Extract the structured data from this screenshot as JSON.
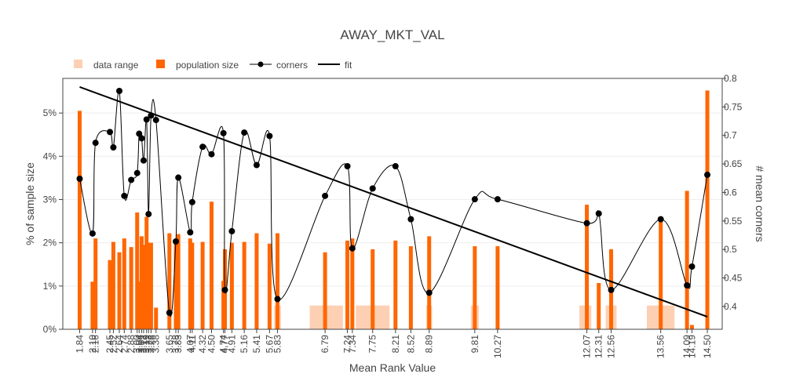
{
  "chart_data": {
    "type": "bar",
    "title": "AWAY_MKT_VAL",
    "xlabel": "Mean Rank Value",
    "ylabel": "% of sample size",
    "y2label": "# mean corners",
    "xlim": [
      1.5,
      14.8
    ],
    "ylim": [
      0,
      5.8
    ],
    "y2lim": [
      0.36,
      0.8
    ],
    "yticks": [
      0,
      1,
      2,
      3,
      4,
      5
    ],
    "ytick_labels": [
      "0%",
      "1%",
      "2%",
      "3%",
      "4%",
      "5%"
    ],
    "y2ticks": [
      0.4,
      0.45,
      0.5,
      0.55,
      0.6,
      0.65,
      0.7,
      0.75,
      0.8
    ],
    "grid": true,
    "legend_position": "top-left",
    "colors": {
      "data_range": "#fdd0b4",
      "population": "#ff6600",
      "line": "#000000"
    },
    "legend": [
      {
        "label": "data range",
        "kind": "range"
      },
      {
        "label": "population size",
        "kind": "bar"
      },
      {
        "label": "corners",
        "kind": "line-marker"
      },
      {
        "label": "fit",
        "kind": "line"
      }
    ],
    "x_tick_labels": [
      "1.84",
      "2.10",
      "2.16",
      "2.45",
      "2.52",
      "2.64",
      "2.74",
      "2.88",
      "3.00",
      "3.04",
      "3.09",
      "3.13",
      "3.19",
      "3.23",
      "3.28",
      "3.38",
      "3.65",
      "3.78",
      "3.83",
      "4.07",
      "4.11",
      "4.32",
      "4.50",
      "4.74",
      "4.77",
      "4.91",
      "5.16",
      "5.41",
      "5.67",
      "5.83",
      "6.79",
      "7.24",
      "7.34",
      "7.75",
      "8.21",
      "8.52",
      "8.89",
      "9.81",
      "10.27",
      "12.07",
      "12.31",
      "12.56",
      "13.56",
      "14.09",
      "14.19",
      "14.50"
    ],
    "x_values": [
      1.84,
      2.1,
      2.16,
      2.45,
      2.52,
      2.64,
      2.74,
      2.88,
      3.0,
      3.04,
      3.09,
      3.13,
      3.19,
      3.23,
      3.28,
      3.38,
      3.65,
      3.78,
      3.83,
      4.07,
      4.11,
      4.32,
      4.5,
      4.74,
      4.77,
      4.91,
      5.16,
      5.41,
      5.67,
      5.83,
      6.79,
      7.24,
      7.34,
      7.75,
      8.21,
      8.52,
      8.89,
      9.81,
      10.27,
      12.07,
      12.31,
      12.56,
      13.56,
      14.09,
      14.19,
      14.5
    ],
    "population_size": [
      5.05,
      1.1,
      2.1,
      1.6,
      2.02,
      1.78,
      2.1,
      1.9,
      2.7,
      1.1,
      2.15,
      1.95,
      2.6,
      2.0,
      2.0,
      0.5,
      2.22,
      2.0,
      2.2,
      2.1,
      2.0,
      2.02,
      2.95,
      1.12,
      1.85,
      2.0,
      2.02,
      2.22,
      1.98,
      2.22,
      1.78,
      2.05,
      2.1,
      1.85,
      2.05,
      1.92,
      2.15,
      1.92,
      1.92,
      2.88,
      1.07,
      1.85,
      2.5,
      3.2,
      0.1,
      5.52
    ],
    "corners": [
      0.624,
      0.528,
      0.687,
      0.706,
      0.679,
      0.778,
      0.594,
      0.622,
      0.634,
      0.703,
      0.695,
      0.656,
      0.728,
      0.562,
      0.735,
      0.727,
      0.389,
      0.514,
      0.626,
      0.53,
      0.583,
      0.68,
      0.667,
      0.704,
      0.429,
      0.532,
      0.705,
      0.648,
      0.699,
      0.413,
      0.594,
      0.646,
      0.502,
      0.607,
      0.646,
      0.553,
      0.424,
      0.588,
      0.588,
      0.546,
      0.563,
      0.429,
      0.553,
      0.437,
      0.47,
      0.631
    ],
    "data_range": [
      {
        "x0": 4.88,
        "x1": 4.94,
        "height": 0.55
      },
      {
        "x0": 5.76,
        "x1": 5.9,
        "height": 0.55
      },
      {
        "x0": 6.48,
        "x1": 7.15,
        "height": 0.55
      },
      {
        "x0": 7.41,
        "x1": 8.09,
        "height": 0.55
      },
      {
        "x0": 8.83,
        "x1": 8.95,
        "height": 0.55
      },
      {
        "x0": 9.73,
        "x1": 9.89,
        "height": 0.55
      },
      {
        "x0": 10.24,
        "x1": 10.3,
        "height": 0.55
      },
      {
        "x0": 11.92,
        "x1": 12.16,
        "height": 0.55
      },
      {
        "x0": 12.45,
        "x1": 12.67,
        "height": 0.55
      },
      {
        "x0": 13.28,
        "x1": 13.84,
        "height": 0.55
      }
    ],
    "fit": {
      "x": [
        1.84,
        14.5
      ],
      "y": [
        0.785,
        0.382
      ]
    }
  }
}
